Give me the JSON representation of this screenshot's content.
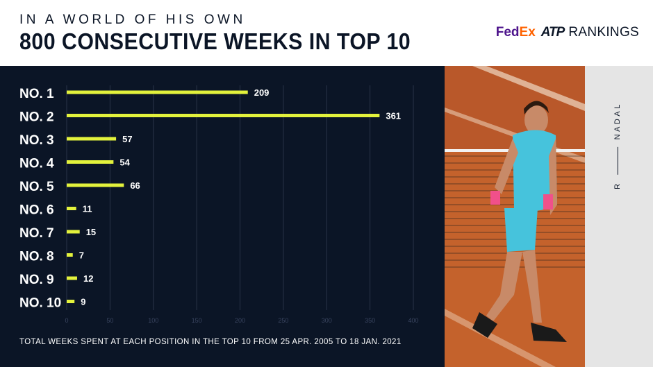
{
  "header": {
    "kicker": "IN A WORLD OF HIS OWN",
    "headline": "800 CONSECUTIVE WEEKS IN TOP 10"
  },
  "logo": {
    "fed": "Fed",
    "ex": "Ex",
    "atp": "ATP",
    "rankings": "RANKINGS"
  },
  "side": {
    "initial": "R",
    "surname": "NADAL"
  },
  "colors": {
    "panel": "#0b1526",
    "bar": "#e3f23c",
    "text": "#ffffff",
    "grid": "#2a3448"
  },
  "chart_data": {
    "type": "bar",
    "orientation": "horizontal",
    "categories": [
      "NO. 1",
      "NO. 2",
      "NO. 3",
      "NO. 4",
      "NO. 5",
      "NO. 6",
      "NO. 7",
      "NO. 8",
      "NO. 9",
      "NO. 10"
    ],
    "values": [
      209,
      361,
      57,
      54,
      66,
      11,
      15,
      7,
      12,
      9
    ],
    "xlim": [
      0,
      400
    ],
    "xticks": [
      0,
      50,
      100,
      150,
      200,
      250,
      300,
      350,
      400
    ],
    "grid": true,
    "title": "800 CONSECUTIVE WEEKS IN TOP 10",
    "note": "TOTAL WEEKS SPENT AT EACH POSITION IN THE TOP 10 FROM 25 APR. 2005 TO 18 JAN. 2021"
  }
}
